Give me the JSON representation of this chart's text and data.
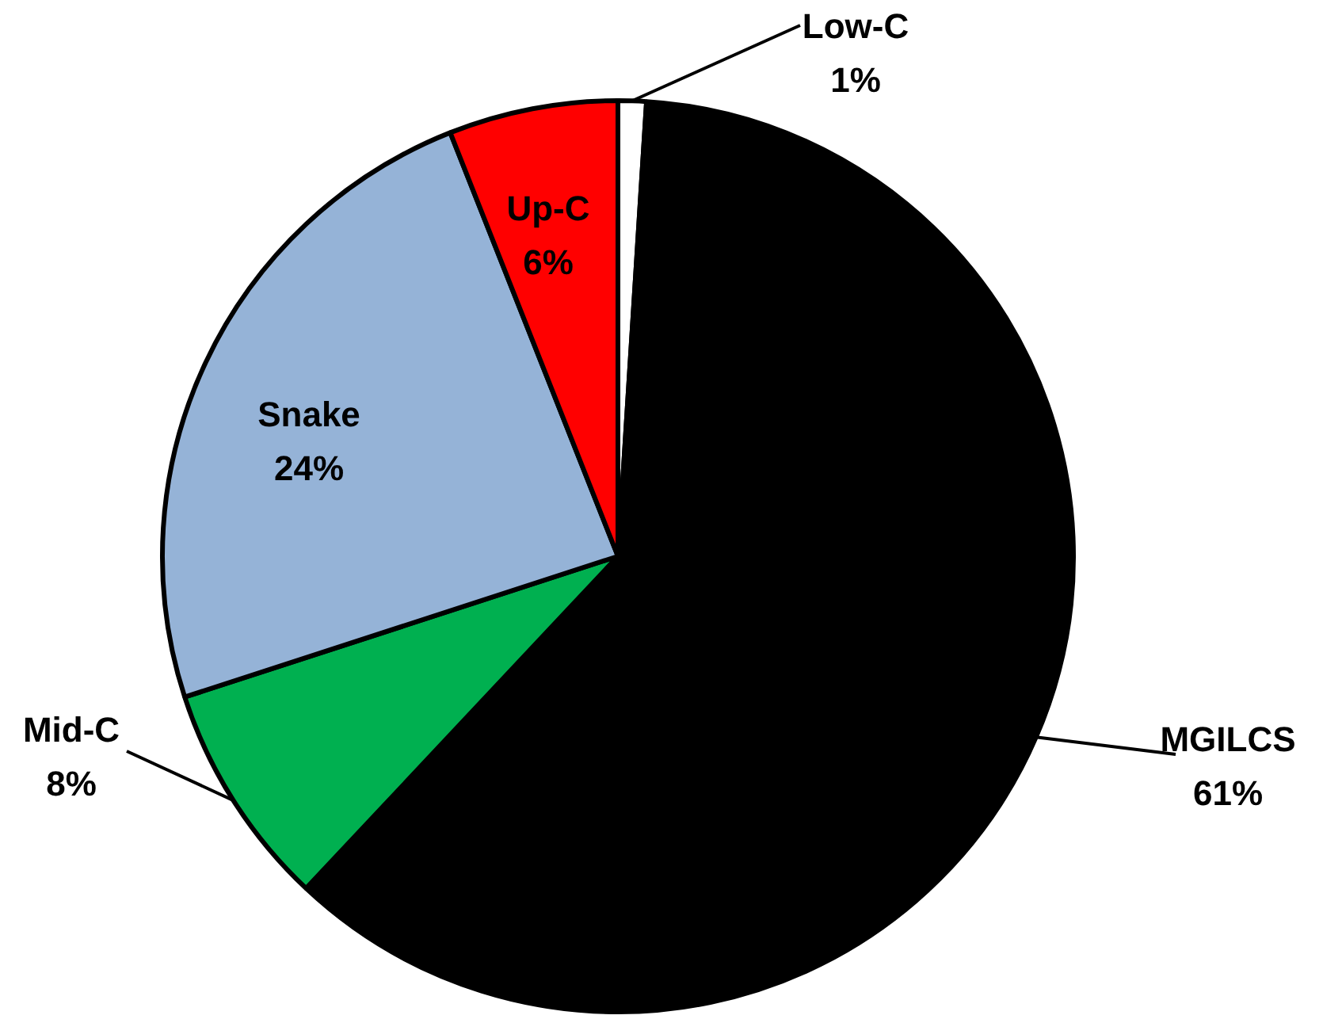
{
  "chart_data": {
    "type": "pie",
    "categories": [
      "Low-C",
      "MGILCS",
      "Mid-C",
      "Snake",
      "Up-C"
    ],
    "values": [
      1,
      61,
      8,
      24,
      6
    ],
    "value_labels": [
      "1%",
      "61%",
      "8%",
      "24%",
      "6%"
    ],
    "colors": [
      "#ffffff",
      "#000000",
      "#00b050",
      "#95b3d7",
      "#ff0000"
    ],
    "legend": false
  }
}
